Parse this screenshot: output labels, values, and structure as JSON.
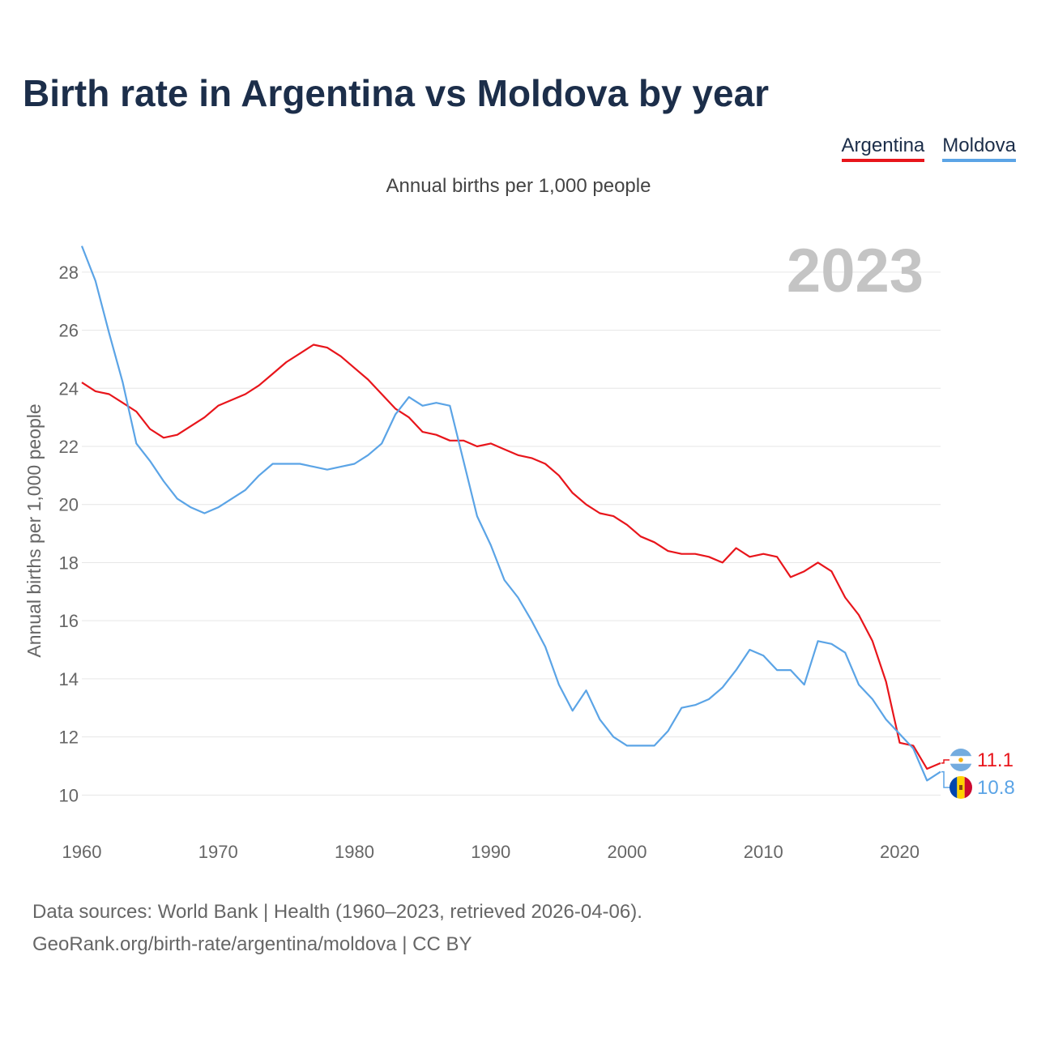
{
  "header": {
    "title": "Birth rate in Argentina vs Moldova by year",
    "subtitle": "Annual births per 1,000 people"
  },
  "footer": {
    "source_line": "Data sources: World Bank | Health (1960–2023, retrieved 2026-04-06).",
    "url_line": "GeoRank.org/birth-rate/argentina/moldova | CC BY"
  },
  "colors": {
    "argentina": "#e8151b",
    "moldova": "#5ba4e6"
  },
  "chart_data": {
    "type": "line",
    "year_label": "2023",
    "ylabel": "Annual births per 1,000 people",
    "ylim": [
      9.2,
      29
    ],
    "xlim": [
      1960,
      2023
    ],
    "yticks": [
      10,
      12,
      14,
      16,
      18,
      20,
      22,
      24,
      26,
      28
    ],
    "xticks": [
      1960,
      1970,
      1980,
      1990,
      2000,
      2010,
      2020
    ],
    "x": [
      1960,
      1961,
      1962,
      1963,
      1964,
      1965,
      1966,
      1967,
      1968,
      1969,
      1970,
      1971,
      1972,
      1973,
      1974,
      1975,
      1976,
      1977,
      1978,
      1979,
      1980,
      1981,
      1982,
      1983,
      1984,
      1985,
      1986,
      1987,
      1988,
      1989,
      1990,
      1991,
      1992,
      1993,
      1994,
      1995,
      1996,
      1997,
      1998,
      1999,
      2000,
      2001,
      2002,
      2003,
      2004,
      2005,
      2006,
      2007,
      2008,
      2009,
      2010,
      2011,
      2012,
      2013,
      2014,
      2015,
      2016,
      2017,
      2018,
      2019,
      2020,
      2021,
      2022,
      2023
    ],
    "series": [
      {
        "name": "Argentina",
        "end_label": "11.1",
        "values": [
          24.2,
          23.9,
          23.8,
          23.5,
          23.2,
          22.6,
          22.3,
          22.4,
          22.7,
          23.0,
          23.4,
          23.6,
          23.8,
          24.1,
          24.5,
          24.9,
          25.2,
          25.5,
          25.4,
          25.1,
          24.7,
          24.3,
          23.8,
          23.3,
          23.0,
          22.5,
          22.4,
          22.2,
          22.2,
          22.0,
          22.1,
          21.9,
          21.7,
          21.6,
          21.4,
          21.0,
          20.4,
          20.0,
          19.7,
          19.6,
          19.3,
          18.9,
          18.7,
          18.4,
          18.3,
          18.3,
          18.2,
          18.0,
          18.5,
          18.2,
          18.3,
          18.2,
          17.5,
          17.7,
          18.0,
          17.7,
          16.8,
          16.2,
          15.3,
          13.9,
          11.8,
          11.7,
          10.9,
          11.1
        ]
      },
      {
        "name": "Moldova",
        "end_label": "10.8",
        "values": [
          28.9,
          27.7,
          25.9,
          24.2,
          22.1,
          21.5,
          20.8,
          20.2,
          19.9,
          19.7,
          19.9,
          20.2,
          20.5,
          21.0,
          21.4,
          21.4,
          21.4,
          21.3,
          21.2,
          21.3,
          21.4,
          21.7,
          22.1,
          23.1,
          23.7,
          23.4,
          23.5,
          23.4,
          21.5,
          19.6,
          18.6,
          17.4,
          16.8,
          16.0,
          15.1,
          13.8,
          12.9,
          13.6,
          12.6,
          12.0,
          11.7,
          11.7,
          11.7,
          12.2,
          13.0,
          13.1,
          13.3,
          13.7,
          14.3,
          15.0,
          14.8,
          14.3,
          14.3,
          13.8,
          15.3,
          15.2,
          14.9,
          13.8,
          13.3,
          12.6,
          12.1,
          11.6,
          10.5,
          10.8
        ]
      }
    ]
  }
}
